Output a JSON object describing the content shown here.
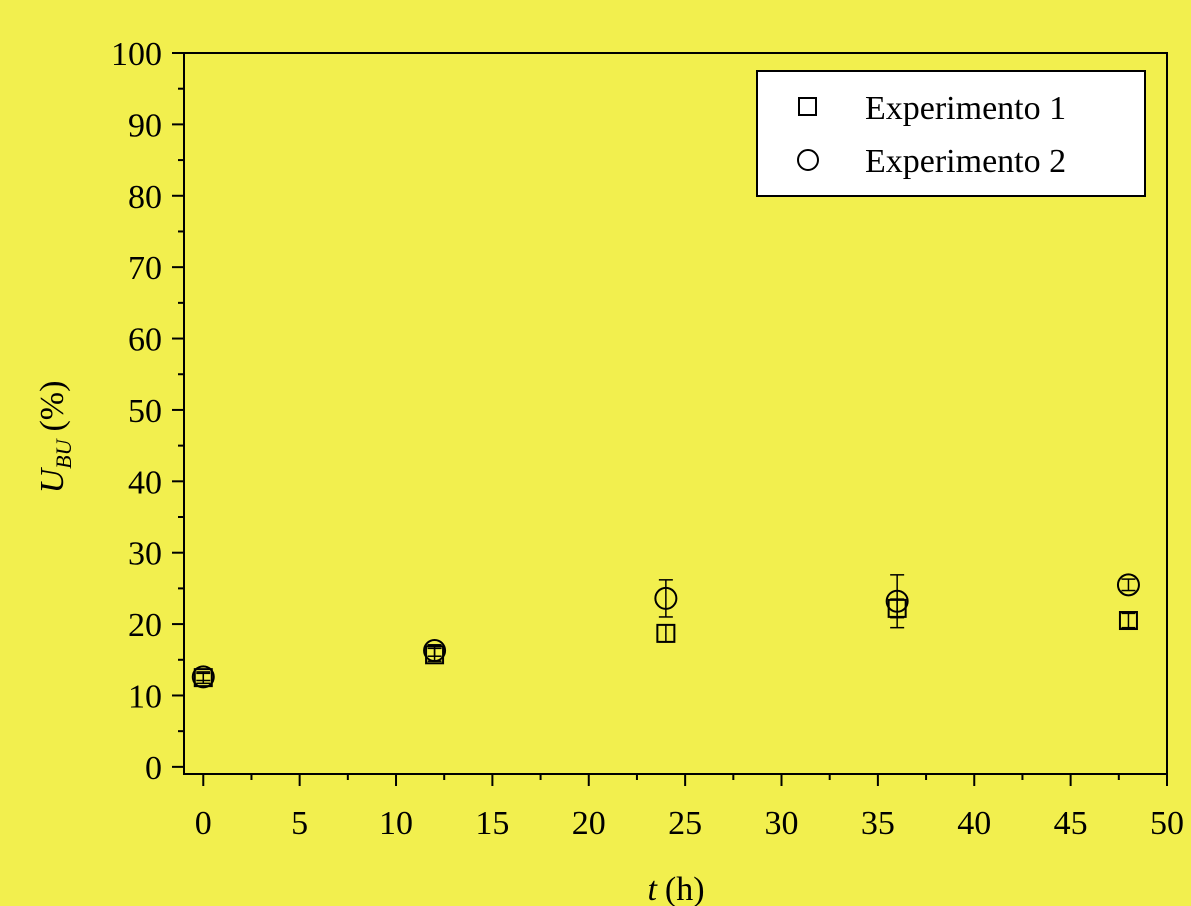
{
  "colors": {
    "background": "#f2ef4e",
    "ink": "#000000",
    "marker_fill": "#ffffff"
  },
  "chart_data": {
    "type": "scatter",
    "title": "",
    "xlabel": {
      "symbol": "t",
      "unit": "(h)"
    },
    "ylabel": {
      "symbol": "U",
      "subscript": "BU",
      "unit": "(%)"
    },
    "xlim": [
      -1,
      50
    ],
    "ylim": [
      -1,
      100
    ],
    "x_ticks": [
      0,
      5,
      10,
      15,
      20,
      25,
      30,
      35,
      40,
      45,
      50
    ],
    "y_ticks": [
      0,
      10,
      20,
      30,
      40,
      50,
      60,
      70,
      80,
      90,
      100
    ],
    "grid": false,
    "legend_position": "top-right",
    "series": [
      {
        "name": "Experimento 1",
        "marker": "square",
        "x": [
          0,
          12,
          24,
          36,
          48
        ],
        "y": [
          12.5,
          15.7,
          18.7,
          22.2,
          20.5
        ],
        "err": [
          0.8,
          0.9,
          1.2,
          1.3,
          1.0
        ]
      },
      {
        "name": "Experimento 2",
        "marker": "circle",
        "x": [
          0,
          12,
          24,
          36,
          48
        ],
        "y": [
          12.6,
          16.3,
          23.6,
          23.2,
          25.5
        ],
        "err": [
          0.5,
          0.8,
          2.6,
          3.7,
          0.8
        ]
      }
    ]
  }
}
